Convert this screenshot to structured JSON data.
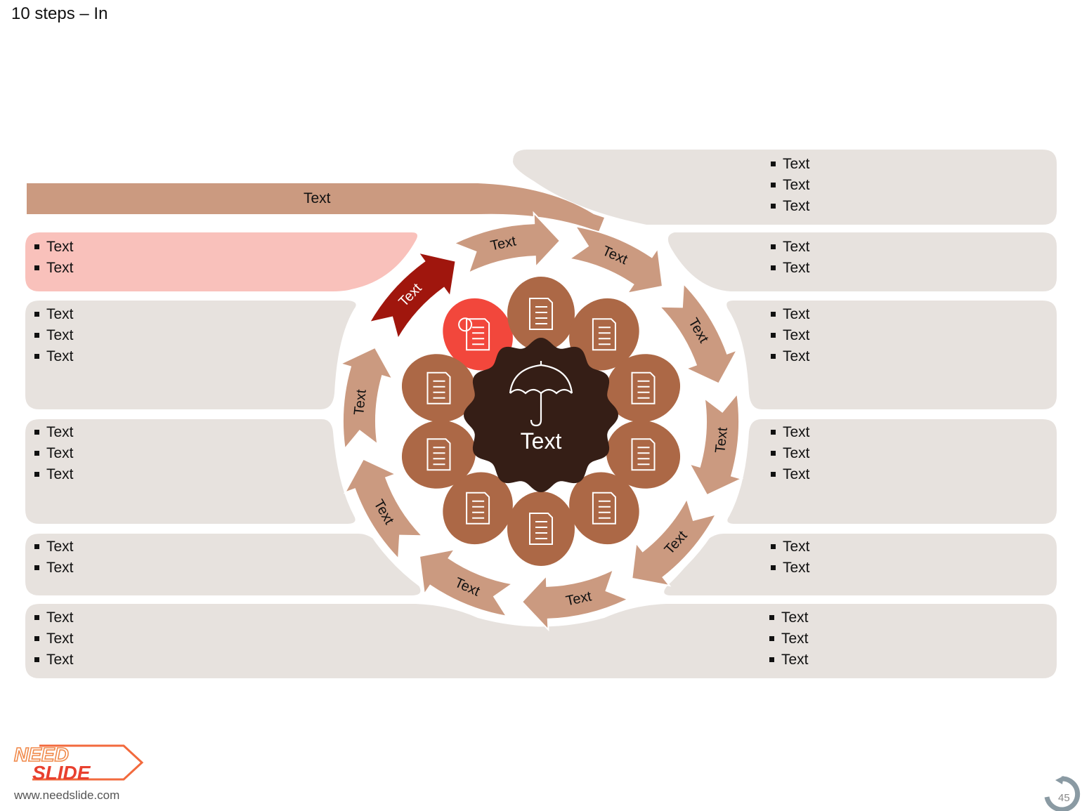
{
  "title": "10 steps – In",
  "top_bar_label": "Text",
  "center_label": "Text",
  "arrow_labels": [
    "Text",
    "Text",
    "Text",
    "Text",
    "Text",
    "Text",
    "Text",
    "Text",
    "Text",
    "Text"
  ],
  "left_lists": [
    [
      "Text",
      "Text"
    ],
    [
      "Text",
      "Text",
      "Text"
    ],
    [
      "Text",
      "Text",
      "Text"
    ],
    [
      "Text",
      "Text"
    ],
    [
      "Text",
      "Text",
      "Text"
    ]
  ],
  "right_lists": [
    [
      "Text",
      "Text",
      "Text"
    ],
    [
      "Text",
      "Text"
    ],
    [
      "Text",
      "Text",
      "Text"
    ],
    [
      "Text",
      "Text",
      "Text"
    ],
    [
      "Text",
      "Text"
    ],
    [
      "Text",
      "Text",
      "Text"
    ]
  ],
  "icons": [
    "calculator-icon",
    "document-upload-icon",
    "checklist-upload-icon",
    "certificate-icon",
    "document-download-icon",
    "documents-stack-icon",
    "checklist-icon",
    "checklist-upload-icon",
    "documents-stack-icon",
    "checklist-download-icon"
  ],
  "colors": {
    "arrow": "#cb9a80",
    "arrow_active": "#a0160d",
    "bubble": "#ac6846",
    "bubble_active": "#f2473c",
    "center": "#351e16",
    "panel": "#e7e2de",
    "panel_active": "#f9c1bb"
  },
  "footer": {
    "brand_top": "NEED",
    "brand_bottom": "SLIDE",
    "url": "www.needslide.com",
    "page": "45"
  }
}
